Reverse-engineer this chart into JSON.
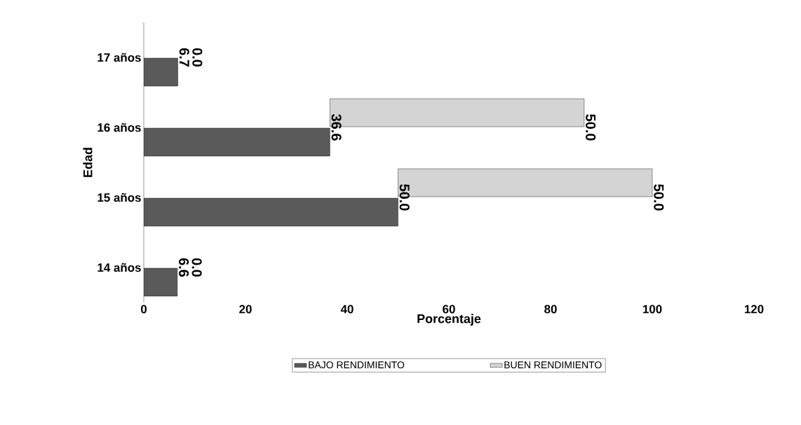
{
  "chart_data": {
    "type": "bar",
    "orientation": "horizontal",
    "stacked": true,
    "categories": [
      "17 años",
      "16 años",
      "15 años",
      "14 años"
    ],
    "series": [
      {
        "name": "BAJO RENDIMIENTO",
        "color": "#5a5a5a",
        "values": [
          6.7,
          36.6,
          50.0,
          6.6
        ],
        "value_labels": [
          "6.7",
          "36.6",
          "50.0",
          "6.6"
        ]
      },
      {
        "name": "BUEN RENDIMIENTO",
        "color": "#d4d4d4",
        "values": [
          0.0,
          50.0,
          50.0,
          0.0
        ],
        "value_labels": [
          "0.0",
          "50.0",
          "50.0",
          "0.0"
        ]
      }
    ],
    "xlabel": "Porcentaje",
    "ylabel": "Edad",
    "xlim": [
      0,
      120
    ],
    "xticks": [
      0,
      20,
      40,
      60,
      80,
      100,
      120
    ],
    "grid": false,
    "legend": "bottom"
  }
}
